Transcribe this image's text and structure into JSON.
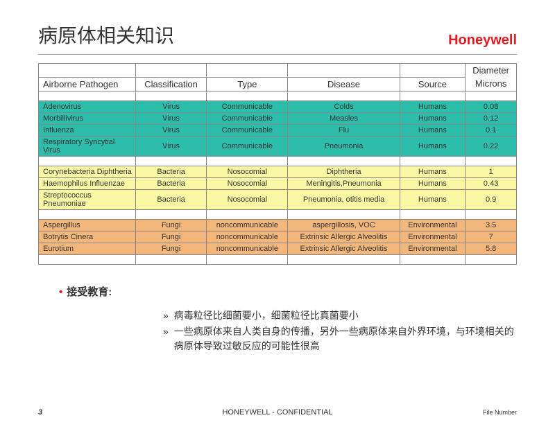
{
  "header": {
    "title": "病原体相关知识",
    "brand": "Honeywell"
  },
  "table": {
    "columns": [
      "Airborne Pathogen",
      "Classification",
      "Type",
      "Disease",
      "Source",
      "Diameter Microns"
    ],
    "header_top": [
      "",
      "",
      "",
      "",
      "",
      "Diameter"
    ],
    "header_bot": [
      "Airborne Pathogen",
      "Classification",
      "Type",
      "Disease",
      "Source",
      "Microns"
    ],
    "groups": [
      {
        "class": "group-virus",
        "bg": "#2dbdab",
        "rows": [
          [
            "Adenovirus",
            "Virus",
            "Communicable",
            "Colds",
            "Humans",
            "0.08"
          ],
          [
            "Morbillivirus",
            "Virus",
            "Communicable",
            "Measles",
            "Humans",
            "0.12"
          ],
          [
            "Influenza",
            "Virus",
            "Communicable",
            "Flu",
            "Humans",
            "0.1"
          ],
          [
            "Respiratory Syncytial Virus",
            "Virus",
            "Communicable",
            "Pneumonia",
            "Humans",
            "0.22"
          ]
        ]
      },
      {
        "class": "group-bacteria",
        "bg": "#fbf8a5",
        "rows": [
          [
            "Corynebacteria Diphtheria",
            "Bacteria",
            "Nosocomial",
            "Diphtheria",
            "Humans",
            "1"
          ],
          [
            "Haemophilus Influenzae",
            "Bacteria",
            "Nosocomial",
            "Meningitis,Pneumonia",
            "Humans",
            "0.43"
          ],
          [
            "Streptococcus Pneumoniae",
            "Bacteria",
            "Nosocomial",
            "Pneumonia, otitis media",
            "Humans",
            "0.9"
          ]
        ]
      },
      {
        "class": "group-fungi",
        "bg": "#f4b77b",
        "rows": [
          [
            "Aspergillus",
            "Fungi",
            "noncommunicable",
            "aspergillosis, VOC",
            "Environmental",
            "3.5"
          ],
          [
            "Botrytis Cinera",
            "Fungi",
            "noncommunicable",
            "Extrinsic Allergic Alveolitis",
            "Environmental",
            "7"
          ],
          [
            "Eurotium",
            "Fungi",
            "noncommunicable",
            "Extrinsic Allergic Alveolitis",
            "Environmental",
            "5.8"
          ]
        ]
      }
    ]
  },
  "bullets": {
    "main": "接受教育:",
    "sub": [
      "病毒粒径比细菌要小，细菌粒径比真菌要小",
      "一些病原体来自人类自身的传播，另外一些病原体来自外界环境，与环境相关的病原体导致过敏反应的可能性很高"
    ]
  },
  "footer": {
    "page": "3",
    "conf": "HONEYWELL - CONFIDENTIAL",
    "filenum": "File Number"
  },
  "colors": {
    "brand": "#e31b23",
    "virus_bg": "#2dbdab",
    "bacteria_bg": "#fbf8a5",
    "fungi_bg": "#f4b77b"
  }
}
